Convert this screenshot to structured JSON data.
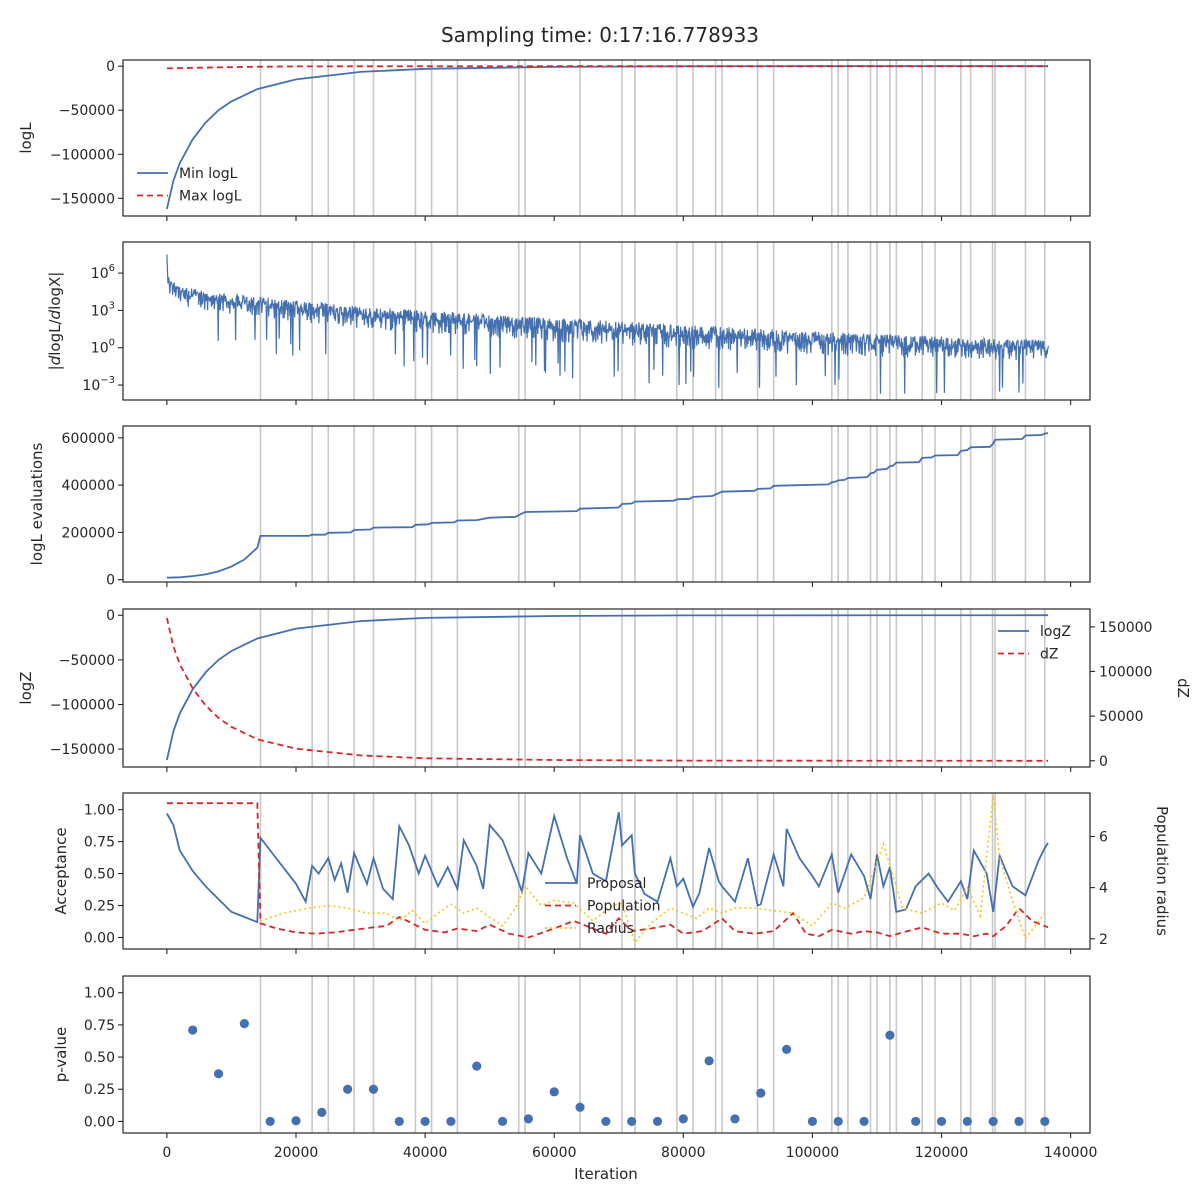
{
  "title": "Sampling time: 0:17:16.778933",
  "colors": {
    "blue": "#4470b0",
    "red": "#d62728",
    "yellow": "#f5c518",
    "vline": "#c8c8c8"
  },
  "x_axis": {
    "label": "Iteration",
    "range": [
      -6800,
      143000
    ],
    "ticks": [
      0,
      20000,
      40000,
      60000,
      80000,
      100000,
      120000,
      140000
    ],
    "tick_labels": [
      "0",
      "20000",
      "40000",
      "60000",
      "80000",
      "100000",
      "120000",
      "140000"
    ]
  },
  "vlines": [
    14500,
    22500,
    25000,
    29000,
    32000,
    38500,
    41000,
    45000,
    54500,
    55500,
    64000,
    70500,
    72500,
    79000,
    81500,
    85000,
    86000,
    91500,
    94000,
    103000,
    104000,
    105500,
    109000,
    110000,
    112000,
    113000,
    117000,
    119000,
    123000,
    124500,
    127900,
    128300,
    133000,
    136000
  ],
  "chart_data": [
    {
      "type": "line",
      "ylabel": "logL",
      "ylim": [
        -170000,
        7000
      ],
      "yticks": [
        0,
        -50000,
        -100000,
        -150000
      ],
      "ytick_labels": [
        "0",
        "−50000",
        "−100000",
        "−150000"
      ],
      "legend": {
        "position": "lower-left",
        "entries": [
          "Min logL",
          "Max logL"
        ]
      },
      "series": [
        {
          "name": "Min logL",
          "style": "solid",
          "x": [
            0,
            1000,
            2000,
            4000,
            6000,
            8000,
            10000,
            14000,
            20000,
            30000,
            40000,
            60000,
            80000,
            100000,
            136500
          ],
          "y": [
            -162000,
            -130000,
            -110000,
            -83000,
            -64000,
            -50000,
            -40000,
            -26000,
            -15000,
            -6500,
            -3000,
            -800,
            -200,
            -50,
            0
          ]
        },
        {
          "name": "Max logL",
          "style": "dashed",
          "x": [
            0,
            2000,
            5000,
            10000,
            15000,
            20000,
            30000,
            60000,
            136500
          ],
          "y": [
            -2500,
            -2200,
            -1700,
            -1100,
            -600,
            -300,
            -100,
            -20,
            0
          ]
        }
      ]
    },
    {
      "type": "line",
      "ylabel": "|dlogL/dlogX|",
      "ylim_log10": [
        -4.2,
        8.5
      ],
      "yscale": "log",
      "yticks_log10": [
        6,
        3,
        0,
        -3
      ],
      "ytick_labels": [
        "10^6",
        "10^3",
        "10^0",
        "10^−3"
      ],
      "trend": {
        "x": [
          0,
          2000,
          10000,
          30000,
          60000,
          100000,
          136500
        ],
        "upper_log10": [
          5.8,
          4.9,
          4.3,
          3.3,
          2.4,
          1.3,
          0.6
        ],
        "lower_log10": [
          3.5,
          2.6,
          1.8,
          0.6,
          -0.6,
          -1.6,
          -2.0
        ]
      }
    },
    {
      "type": "line",
      "ylabel": "logL evaluations",
      "ylim": [
        -10000,
        650000
      ],
      "yticks": [
        0,
        200000,
        400000,
        600000
      ],
      "ytick_labels": [
        "0",
        "200000",
        "400000",
        "600000"
      ],
      "series": [
        {
          "name": "",
          "style": "solid",
          "x": [
            0,
            2000,
            4000,
            6000,
            8000,
            10000,
            12000,
            14000,
            14500,
            22000,
            22500,
            24500,
            25000,
            28500,
            29000,
            31500,
            32000,
            38000,
            38500,
            40500,
            41000,
            44500,
            45000,
            48000,
            50000,
            54000,
            55500,
            63500,
            64000,
            70000,
            70500,
            72000,
            72500,
            78500,
            79000,
            81000,
            81500,
            84500,
            86000,
            91000,
            91500,
            93500,
            94000,
            102500,
            103000,
            103500,
            104000,
            105000,
            105500,
            108500,
            109000,
            109500,
            110000,
            111500,
            112000,
            112500,
            113000,
            116500,
            117000,
            118500,
            119000,
            122500,
            123000,
            124000,
            124500,
            127500,
            128000,
            128300,
            132500,
            133000,
            135500,
            136000,
            136500
          ],
          "y": [
            8000,
            10000,
            15000,
            22000,
            35000,
            55000,
            85000,
            135000,
            185000,
            185000,
            190000,
            190000,
            198000,
            200000,
            210000,
            212000,
            220000,
            222000,
            232000,
            234000,
            240000,
            242000,
            250000,
            252000,
            262000,
            266000,
            286000,
            290000,
            300000,
            305000,
            320000,
            322000,
            330000,
            334000,
            340000,
            342000,
            350000,
            354000,
            372000,
            376000,
            384000,
            386000,
            397000,
            403000,
            412000,
            414000,
            420000,
            422000,
            430000,
            434000,
            450000,
            452000,
            465000,
            468000,
            480000,
            482000,
            495000,
            497000,
            515000,
            517000,
            525000,
            527000,
            545000,
            548000,
            560000,
            562000,
            575000,
            592000,
            595000,
            610000,
            612000,
            618000,
            620000
          ]
        }
      ]
    },
    {
      "type": "line",
      "ylabel": "logZ",
      "y2label": "dZ",
      "ylim": [
        -170000,
        7000
      ],
      "yticks": [
        0,
        -50000,
        -100000,
        -150000
      ],
      "ytick_labels": [
        "0",
        "−50000",
        "−100000",
        "−150000"
      ],
      "y2lim": [
        -7000,
        170000
      ],
      "y2ticks": [
        0,
        50000,
        100000,
        150000
      ],
      "y2tick_labels": [
        "0",
        "50000",
        "100000",
        "150000"
      ],
      "legend": {
        "position": "upper-right",
        "entries": [
          "logZ",
          "dZ"
        ]
      },
      "series": [
        {
          "name": "logZ",
          "style": "solid",
          "axis": "left",
          "x": [
            0,
            1000,
            2000,
            4000,
            6000,
            8000,
            10000,
            14000,
            20000,
            30000,
            40000,
            60000,
            80000,
            100000,
            136500
          ],
          "y": [
            -162000,
            -130000,
            -110000,
            -83000,
            -64000,
            -50000,
            -40000,
            -26000,
            -15000,
            -6500,
            -3000,
            -800,
            -200,
            -50,
            0
          ]
        },
        {
          "name": "dZ",
          "style": "dashed",
          "axis": "right",
          "x": [
            0,
            1000,
            2000,
            4000,
            6000,
            8000,
            10000,
            14000,
            20000,
            30000,
            40000,
            60000,
            80000,
            100000,
            136500
          ],
          "y": [
            160000,
            128000,
            108000,
            81000,
            62000,
            48000,
            38000,
            24000,
            13500,
            6000,
            2800,
            800,
            200,
            50,
            0
          ]
        }
      ]
    },
    {
      "type": "line",
      "ylabel": "Acceptance",
      "y2label": "Population radius",
      "ylim": [
        -0.09,
        1.13
      ],
      "yticks": [
        0.0,
        0.25,
        0.5,
        0.75,
        1.0
      ],
      "ytick_labels": [
        "0.00",
        "0.25",
        "0.50",
        "0.75",
        "1.00"
      ],
      "y2lim": [
        1.6,
        7.7
      ],
      "y2ticks": [
        2,
        4,
        6
      ],
      "y2tick_labels": [
        "2",
        "4",
        "6"
      ],
      "legend": {
        "position": "lower-center",
        "entries": [
          "Proposal",
          "Population",
          "Radius"
        ]
      },
      "series": [
        {
          "name": "Proposal",
          "style": "solid",
          "axis": "left",
          "x": [
            0,
            1000,
            2000,
            4000,
            6000,
            8000,
            10000,
            12000,
            14000,
            14500,
            16000,
            18000,
            20000,
            21500,
            22500,
            23500,
            25000,
            26000,
            27000,
            28000,
            29000,
            31000,
            32000,
            33500,
            35000,
            36000,
            37500,
            39000,
            40000,
            42000,
            43500,
            45000,
            46000,
            48000,
            49000,
            50000,
            52000,
            54000,
            55000,
            56000,
            58000,
            60000,
            62000,
            63500,
            64000,
            66000,
            68000,
            70000,
            70500,
            72000,
            72500,
            74000,
            76000,
            78000,
            79000,
            80000,
            81500,
            82500,
            84000,
            85500,
            86000,
            88000,
            90000,
            91500,
            92000,
            94000,
            95500,
            96000,
            98000,
            100000,
            101000,
            103000,
            104000,
            106000,
            108000,
            109000,
            110000,
            111000,
            112000,
            113000,
            114500,
            116000,
            118000,
            119500,
            121000,
            123000,
            124000,
            125000,
            127000,
            128000,
            129000,
            131000,
            133000,
            135000,
            136000,
            136500
          ],
          "y": [
            0.97,
            0.88,
            0.68,
            0.52,
            0.4,
            0.3,
            0.2,
            0.16,
            0.12,
            0.78,
            0.68,
            0.55,
            0.42,
            0.28,
            0.56,
            0.5,
            0.62,
            0.45,
            0.58,
            0.35,
            0.66,
            0.42,
            0.62,
            0.38,
            0.3,
            0.87,
            0.72,
            0.5,
            0.64,
            0.4,
            0.55,
            0.38,
            0.76,
            0.56,
            0.38,
            0.88,
            0.76,
            0.5,
            0.36,
            0.66,
            0.5,
            0.95,
            0.62,
            0.42,
            0.8,
            0.5,
            0.44,
            0.98,
            0.72,
            0.8,
            0.5,
            0.34,
            0.28,
            0.62,
            0.4,
            0.46,
            0.24,
            0.35,
            0.7,
            0.44,
            0.4,
            0.28,
            0.62,
            0.25,
            0.26,
            0.65,
            0.4,
            0.85,
            0.62,
            0.48,
            0.4,
            0.65,
            0.35,
            0.65,
            0.48,
            0.3,
            0.65,
            0.4,
            0.55,
            0.2,
            0.22,
            0.4,
            0.5,
            0.38,
            0.28,
            0.44,
            0.3,
            0.68,
            0.5,
            0.2,
            0.64,
            0.4,
            0.33,
            0.6,
            0.7,
            0.74
          ]
        },
        {
          "name": "Population",
          "style": "dashed",
          "axis": "right",
          "x": [
            0,
            14000,
            14500,
            17000,
            20000,
            23000,
            26000,
            29000,
            32000,
            34000,
            36000,
            38000,
            40000,
            43000,
            45000,
            48000,
            50000,
            53000,
            56000,
            60000,
            63000,
            66000,
            68000,
            70000,
            72000,
            75000,
            78000,
            80000,
            83000,
            86000,
            88000,
            91000,
            94000,
            97000,
            99000,
            101000,
            103000,
            106000,
            108000,
            110000,
            112000,
            114000,
            117000,
            120000,
            123000,
            125000,
            127000,
            128000,
            130000,
            132000,
            134000,
            136500
          ],
          "y": [
            7.3,
            7.3,
            2.6,
            2.4,
            2.25,
            2.2,
            2.25,
            2.35,
            2.45,
            2.5,
            2.85,
            2.6,
            2.35,
            2.25,
            2.4,
            2.3,
            2.55,
            2.2,
            2.05,
            2.4,
            2.7,
            2.4,
            2.2,
            2.8,
            2.3,
            2.4,
            2.55,
            2.2,
            2.3,
            2.8,
            2.3,
            2.2,
            2.3,
            3.0,
            2.2,
            2.1,
            2.35,
            2.2,
            2.3,
            2.25,
            2.1,
            2.25,
            2.45,
            2.2,
            2.2,
            2.1,
            2.2,
            2.1,
            2.5,
            3.2,
            2.7,
            2.45
          ]
        },
        {
          "name": "Radius",
          "style": "dotted",
          "axis": "right",
          "x": [
            14500,
            18000,
            22000,
            25000,
            28000,
            31000,
            34000,
            36000,
            38000,
            40000,
            42000,
            44000,
            46000,
            48000,
            52000,
            54000,
            55500,
            58000,
            60000,
            63000,
            66000,
            69000,
            70500,
            72500,
            75000,
            78000,
            80000,
            82000,
            84000,
            86000,
            88000,
            91000,
            94000,
            97000,
            100000,
            103000,
            105000,
            108000,
            111000,
            114000,
            117000,
            120000,
            122000,
            124000,
            126000,
            128000,
            129000,
            131000,
            133000,
            136000
          ],
          "y": [
            2.7,
            3.0,
            3.2,
            3.3,
            3.2,
            3.0,
            3.0,
            2.7,
            3.1,
            2.6,
            3.0,
            3.35,
            3.0,
            3.2,
            2.5,
            3.2,
            4.05,
            3.3,
            3.5,
            3.4,
            2.7,
            3.3,
            3.4,
            1.85,
            2.6,
            3.2,
            3.0,
            2.8,
            3.2,
            3.0,
            3.2,
            3.2,
            3.1,
            3.0,
            2.5,
            3.4,
            3.2,
            3.6,
            5.7,
            3.2,
            3.0,
            3.4,
            3.1,
            4.0,
            2.9,
            7.6,
            5.2,
            3.5,
            2.0,
            3.0
          ]
        }
      ]
    },
    {
      "type": "scatter",
      "ylabel": "p-value",
      "ylim": [
        -0.09,
        1.13
      ],
      "yticks": [
        0.0,
        0.25,
        0.5,
        0.75,
        1.0
      ],
      "ytick_labels": [
        "0.00",
        "0.25",
        "0.50",
        "0.75",
        "1.00"
      ],
      "series": [
        {
          "name": "",
          "x": [
            4000,
            8000,
            12000,
            16000,
            20000,
            24000,
            28000,
            32000,
            36000,
            40000,
            44000,
            48000,
            52000,
            56000,
            60000,
            64000,
            68000,
            72000,
            76000,
            80000,
            84000,
            88000,
            92000,
            96000,
            100000,
            104000,
            108000,
            112000,
            116000,
            120000,
            124000,
            128000,
            132000,
            136000
          ],
          "y": [
            0.71,
            0.37,
            0.76,
            0.0,
            0.005,
            0.07,
            0.25,
            0.25,
            0.0,
            0.0,
            0.0,
            0.43,
            0.0,
            0.02,
            0.23,
            0.11,
            0.0,
            0.0,
            0.0,
            0.02,
            0.47,
            0.02,
            0.22,
            0.56,
            0.0,
            0.0,
            0.0,
            0.67,
            0.0,
            0.0,
            0.0,
            0.0,
            0.0,
            0.0
          ]
        }
      ]
    }
  ]
}
